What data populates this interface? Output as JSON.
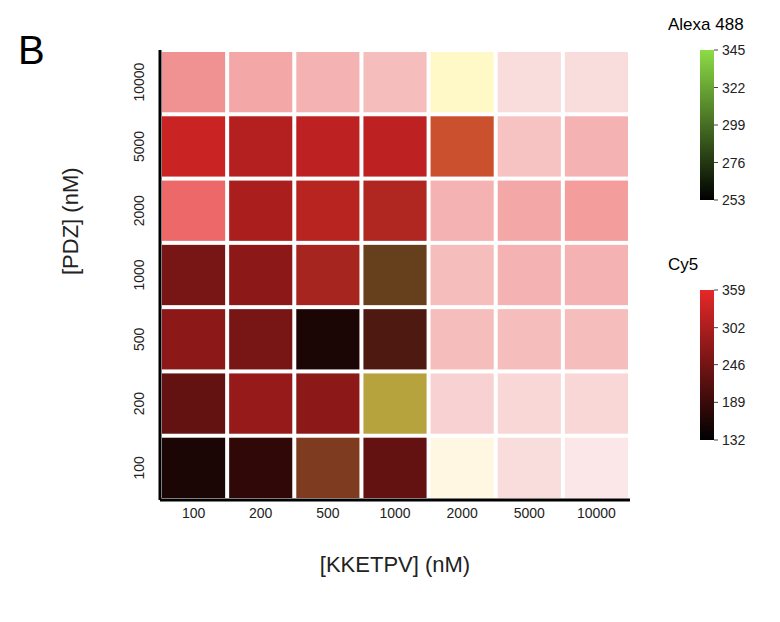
{
  "chart_data": {
    "type": "heatmap",
    "panel_label": "B",
    "x_label": "[KKETPV] (nM)",
    "y_label": "[PDZ] (nM)",
    "x": [
      100,
      200,
      500,
      1000,
      2000,
      5000,
      10000
    ],
    "y": [
      100,
      200,
      500,
      1000,
      2000,
      5000,
      10000
    ],
    "channels": [
      {
        "name": "Alexa 488",
        "color": "#8cdc46",
        "range": [
          253,
          345
        ],
        "ticks": [
          253,
          276,
          299,
          322,
          345
        ],
        "values": [
          [
            253,
            253,
            275,
            253,
            270,
            253,
            253
          ],
          [
            253,
            253,
            253,
            330,
            253,
            253,
            253
          ],
          [
            253,
            253,
            253,
            260,
            253,
            253,
            253
          ],
          [
            253,
            253,
            258,
            280,
            253,
            253,
            253
          ],
          [
            253,
            253,
            256,
            258,
            253,
            253,
            253
          ],
          [
            253,
            253,
            253,
            253,
            280,
            253,
            253
          ],
          [
            253,
            253,
            253,
            253,
            290,
            253,
            253
          ]
        ]
      },
      {
        "name": "Cy5",
        "color": "#e62828",
        "range": [
          132,
          359
        ],
        "ticks": [
          132,
          189,
          246,
          302,
          359
        ],
        "values": [
          [
            160,
            180,
            230,
            230,
            690,
            700,
            720
          ],
          [
            230,
            280,
            270,
            220,
            680,
            690,
            690
          ],
          [
            270,
            250,
            160,
            200,
            640,
            640,
            640
          ],
          [
            250,
            270,
            290,
            200,
            640,
            620,
            620
          ],
          [
            480,
            300,
            310,
            300,
            620,
            600,
            580
          ],
          [
            330,
            310,
            320,
            320,
            300,
            650,
            620
          ],
          [
            560,
            600,
            620,
            640,
            620,
            700,
            700
          ]
        ]
      }
    ]
  }
}
